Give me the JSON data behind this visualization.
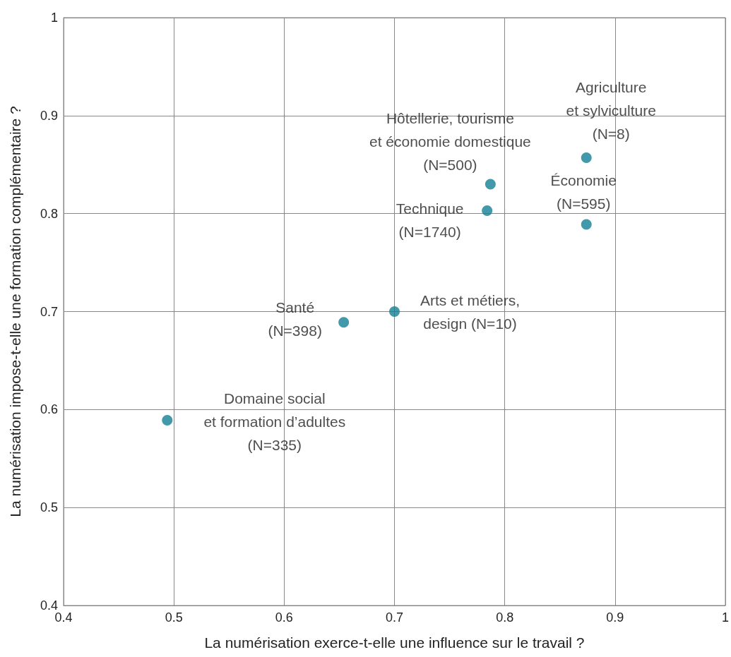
{
  "chart_data": {
    "type": "scatter",
    "x": [
      0.874,
      0.787,
      0.874,
      0.784,
      0.7,
      0.654,
      0.494
    ],
    "values": [
      0.857,
      0.83,
      0.789,
      0.803,
      0.7,
      0.689,
      0.589
    ],
    "color": "#137f95",
    "xlabel": "La numérisation exerce-t-elle une influence sur le travail ?",
    "ylabel": "La numérisation impose-t-elle une formation complémentaire ?",
    "xlim": [
      0.4,
      1
    ],
    "ylim": [
      0.4,
      1
    ],
    "xticks": [
      0.4,
      0.5,
      0.6,
      0.7,
      0.8,
      0.9,
      1
    ],
    "yticks": [
      0.4,
      0.5,
      0.6,
      0.7,
      0.8,
      0.9,
      1
    ],
    "grid": true,
    "marker": "circle",
    "annotations": [
      {
        "text": "Agriculture\net sylviculture\n(N=8)",
        "x": 0.874,
        "y": 0.857
      },
      {
        "text": "Hôtellerie, tourisme\net économie domestique\n(N=500)",
        "x": 0.787,
        "y": 0.83
      },
      {
        "text": "Économie\n(N=595)",
        "x": 0.874,
        "y": 0.789
      },
      {
        "text": "Technique\n(N=1740)",
        "x": 0.784,
        "y": 0.803
      },
      {
        "text": "Arts et métiers,\ndesign (N=10)",
        "x": 0.7,
        "y": 0.7
      },
      {
        "text": "Santé\n(N=398)",
        "x": 0.654,
        "y": 0.689
      },
      {
        "text": "Domaine social\net formation d’adultes\n(N=335)",
        "x": 0.494,
        "y": 0.589
      }
    ]
  }
}
